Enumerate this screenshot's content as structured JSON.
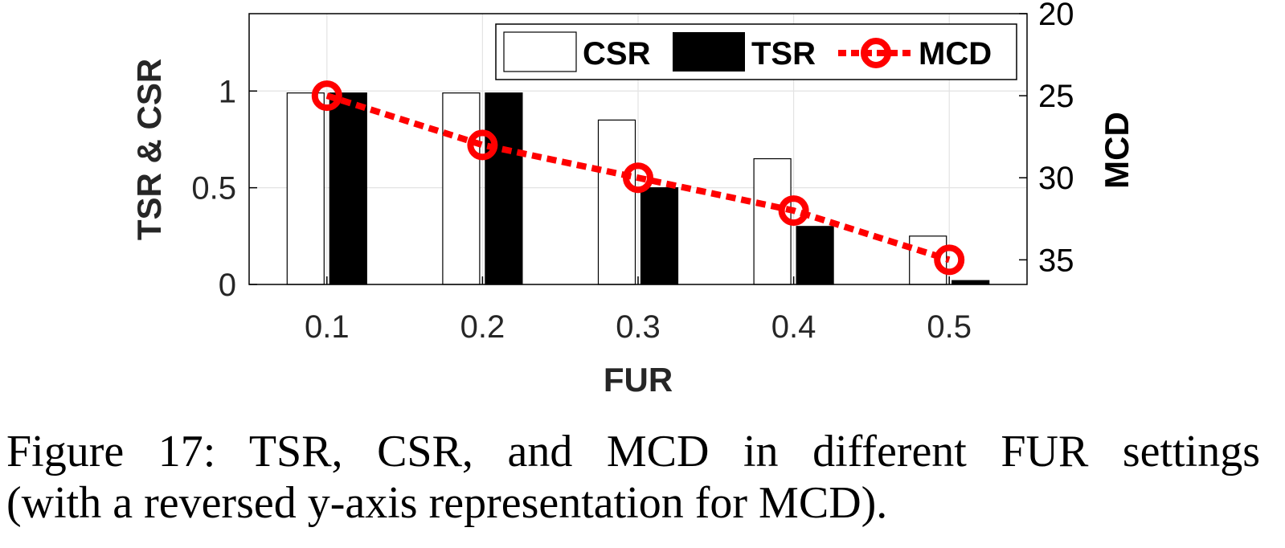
{
  "chart_data": {
    "type": "bar",
    "categories": [
      "0.1",
      "0.2",
      "0.3",
      "0.4",
      "0.5"
    ],
    "xlabel": "FUR",
    "ylabel": "TSR & CSR",
    "ylabel_right": "MCD",
    "ylim": [
      0,
      1.4
    ],
    "yticks": [
      "0",
      "0.5",
      "1"
    ],
    "ylim_right": [
      20,
      36.5
    ],
    "yticks_right": [
      "20",
      "25",
      "30",
      "35"
    ],
    "right_axis_reversed": true,
    "grid": true,
    "legend_position": "top-right",
    "series": [
      {
        "name": "CSR",
        "kind": "bar",
        "color": "#ffffff",
        "values": [
          0.99,
          0.99,
          0.85,
          0.65,
          0.25
        ]
      },
      {
        "name": "TSR",
        "kind": "bar",
        "color": "#000000",
        "values": [
          0.99,
          0.99,
          0.5,
          0.3,
          0.02
        ]
      },
      {
        "name": "MCD",
        "kind": "line",
        "color": "#ff0000",
        "axis": "right",
        "values": [
          25.0,
          28.0,
          30.0,
          32.0,
          35.0
        ]
      }
    ]
  },
  "caption": {
    "line1": "Figure 17: TSR, CSR, and MCD in different FUR settings",
    "line2": "(with a reversed y-axis representation for MCD)."
  }
}
